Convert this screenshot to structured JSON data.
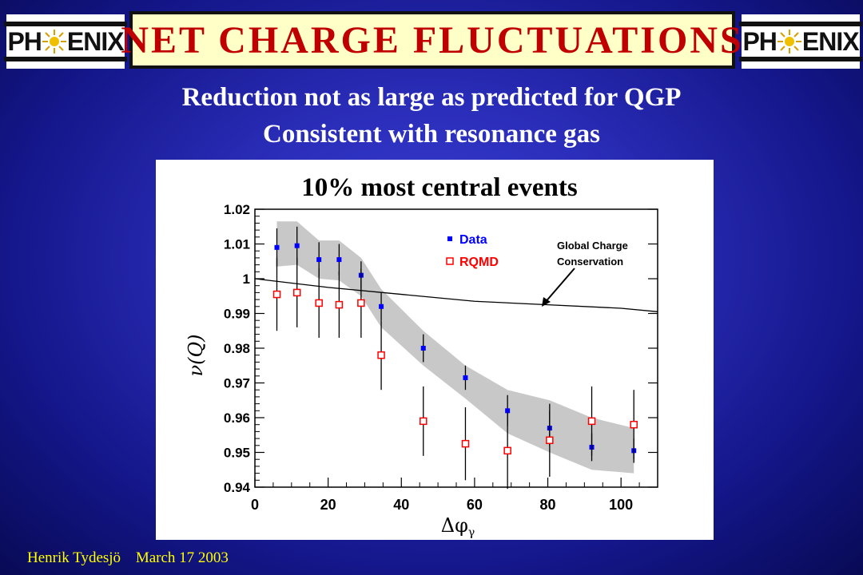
{
  "header": {
    "title": "NET CHARGE FLUCTUATIONS",
    "logo_text_left": "PHENIX",
    "logo_text_right": "PHENIX"
  },
  "subtitles": [
    "Reduction not as large as predicted for QGP",
    "Consistent with resonance gas"
  ],
  "footer": {
    "author": "Henrik Tydesjö",
    "date": "March 17 2003"
  },
  "colors": {
    "title_text": "#c00000",
    "title_box": "#ffffc8",
    "data_marker": "#0000ff",
    "rqmd_marker": "#ff0000",
    "band": "#c8c8c8",
    "footer_text": "#ffff00"
  },
  "chart_data": {
    "type": "scatter",
    "title": "10% most central events",
    "xlabel": "Δφγ",
    "ylabel": "ν(Q)",
    "xlim": [
      0,
      110
    ],
    "ylim": [
      0.94,
      1.02
    ],
    "xticks": [
      0,
      20,
      40,
      60,
      80,
      100
    ],
    "yticks": [
      0.94,
      0.95,
      0.96,
      0.97,
      0.98,
      0.99,
      1,
      1.01,
      1.02
    ],
    "ytick_labels": [
      "0.94",
      "0.95",
      "0.96",
      "0.97",
      "0.98",
      "0.99",
      "1",
      "1.01",
      "1.02"
    ],
    "legend_position": "top-right",
    "annotation": "Global Charge Conservation",
    "series": [
      {
        "name": "Data",
        "marker": "filled-square",
        "x": [
          6,
          11.5,
          17.5,
          23,
          29,
          34.5,
          46,
          57.5,
          69,
          80.5,
          92,
          103.5
        ],
        "y": [
          1.009,
          1.0095,
          1.0055,
          1.0055,
          1.001,
          0.992,
          0.98,
          0.9715,
          0.962,
          0.957,
          0.9515,
          0.9505
        ],
        "err": [
          0.0055,
          0.0055,
          0.005,
          0.0045,
          0.004,
          0.004,
          0.004,
          0.0035,
          0.0045,
          0.005,
          0.004,
          0.0035
        ]
      },
      {
        "name": "RQMD",
        "marker": "open-square",
        "x": [
          6,
          11.5,
          17.5,
          23,
          29,
          34.5,
          46,
          57.5,
          69,
          80.5,
          92,
          103.5
        ],
        "y": [
          0.9955,
          0.996,
          0.993,
          0.9925,
          0.993,
          0.978,
          0.959,
          0.9525,
          0.9505,
          0.9535,
          0.959,
          0.958
        ],
        "err": [
          0.0105,
          0.01,
          0.01,
          0.0095,
          0.01,
          0.01,
          0.01,
          0.0105,
          0.011,
          0.0105,
          0.01,
          0.01
        ]
      },
      {
        "name": "QGP prediction band",
        "type": "area",
        "x": [
          6,
          11.5,
          17.5,
          23,
          29,
          34.5,
          46,
          57.5,
          69,
          80.5,
          92,
          103.5
        ],
        "upper": [
          1.0165,
          1.0165,
          1.011,
          1.011,
          1.006,
          0.997,
          0.985,
          0.975,
          0.968,
          0.965,
          0.96,
          0.957
        ],
        "lower": [
          1.0035,
          1.004,
          1.0,
          0.9995,
          0.995,
          0.986,
          0.975,
          0.9655,
          0.9555,
          0.95,
          0.945,
          0.944
        ]
      },
      {
        "name": "Global Charge Conservation",
        "type": "line",
        "x": [
          0,
          20,
          40,
          60,
          80,
          100,
          110
        ],
        "y": [
          1.0,
          0.9975,
          0.9955,
          0.9935,
          0.9925,
          0.9915,
          0.9905
        ]
      }
    ]
  }
}
